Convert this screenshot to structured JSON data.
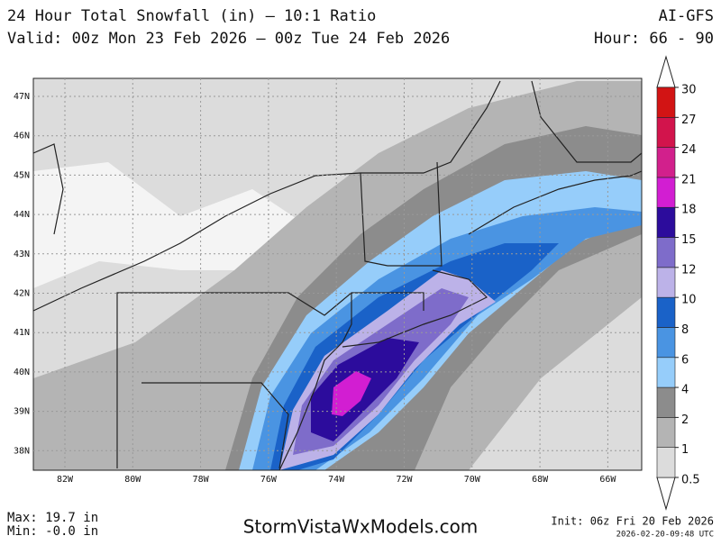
{
  "header": {
    "title": "24 Hour Total Snowfall (in) — 10:1 Ratio",
    "valid": "Valid: 00z Mon 23 Feb 2026 — 00z Tue 24 Feb 2026",
    "model": "AI-GFS",
    "hour": "Hour: 66 - 90"
  },
  "map": {
    "lat_labels": [
      "47N",
      "46N",
      "45N",
      "44N",
      "43N",
      "42N",
      "41N",
      "40N",
      "39N",
      "38N"
    ],
    "lon_labels": [
      "82W",
      "80W",
      "78W",
      "76W",
      "74W",
      "72W",
      "70W",
      "68W",
      "66W"
    ]
  },
  "colorbar": {
    "levels": [
      0.5,
      1,
      2,
      4,
      6,
      8,
      10,
      12,
      15,
      18,
      21,
      24,
      27,
      30
    ],
    "colors": [
      "#dcdcdc",
      "#b4b4b4",
      "#8c8c8c",
      "#96cdfa",
      "#4a94e2",
      "#1a62c8",
      "#bcb2e8",
      "#7e6cca",
      "#2c0c9c",
      "#d21ed2",
      "#d2208c",
      "#d2144c",
      "#d21414"
    ]
  },
  "footer": {
    "max": "Max: 19.7 in",
    "min": "Min: -0.0 in",
    "site": "StormVistaWxModels.com",
    "init": "Init: 06z Fri 20 Feb 2026",
    "stamp": "2026-02-20-09:48 UTC"
  }
}
